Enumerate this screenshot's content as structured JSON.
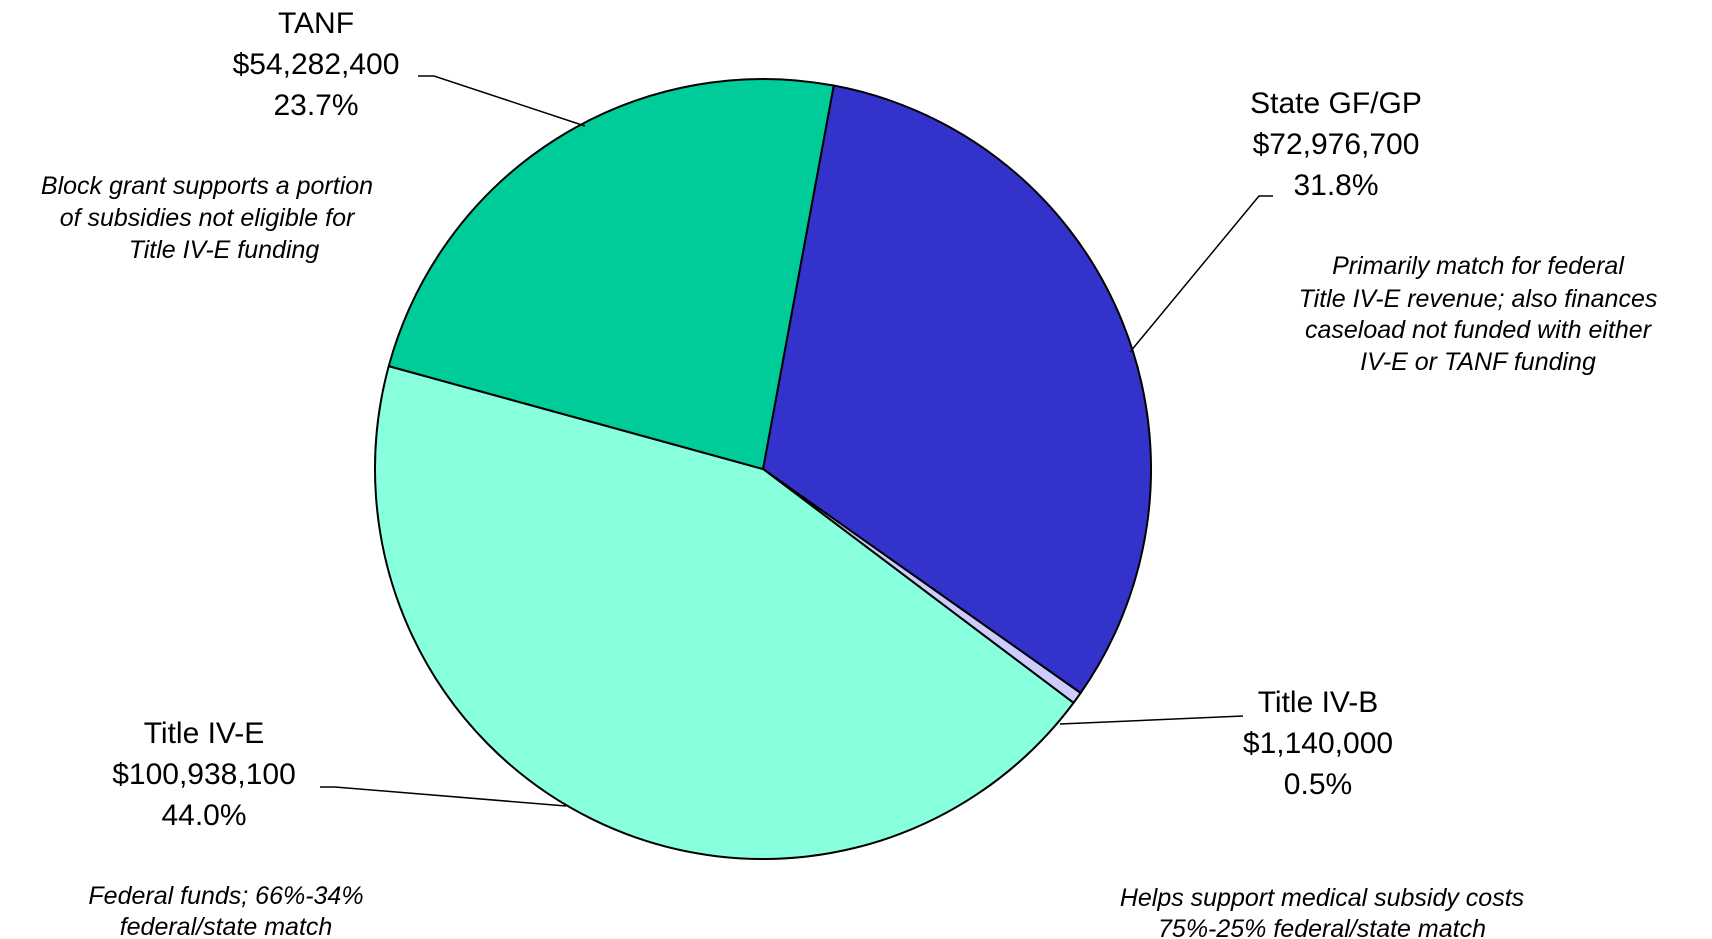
{
  "chart_data": {
    "type": "pie",
    "slices": [
      {
        "name": "State GF/GP",
        "amount": "$72,976,700",
        "percent": "31.8%",
        "value": 72976700,
        "color": "#3333cc",
        "note": [
          "Primarily match for federal",
          "Title IV-E revenue; also finances",
          "caseload not funded with either",
          "IV-E or TANF funding"
        ]
      },
      {
        "name": "Title IV-B",
        "amount": "$1,140,000",
        "percent": "0.5%",
        "value": 1140000,
        "color": "#ccccff",
        "note": [
          "Helps support medical subsidy costs",
          "75%-25% federal/state match"
        ]
      },
      {
        "name": "Title IV-E",
        "amount": "$100,938,100",
        "percent": "44.0%",
        "value": 100938100,
        "color": "#88ffdd",
        "note": [
          "Federal funds; 66%-34%",
          "federal/state match"
        ]
      },
      {
        "name": "TANF",
        "amount": "$54,282,400",
        "percent": "23.7%",
        "value": 54282400,
        "color": "#00cc99",
        "note": [
          "Block grant supports a portion",
          "of subsidies not eligible for",
          "Title IV-E funding"
        ]
      }
    ],
    "start_angle_deg": 10.5,
    "direction": "clockwise"
  }
}
